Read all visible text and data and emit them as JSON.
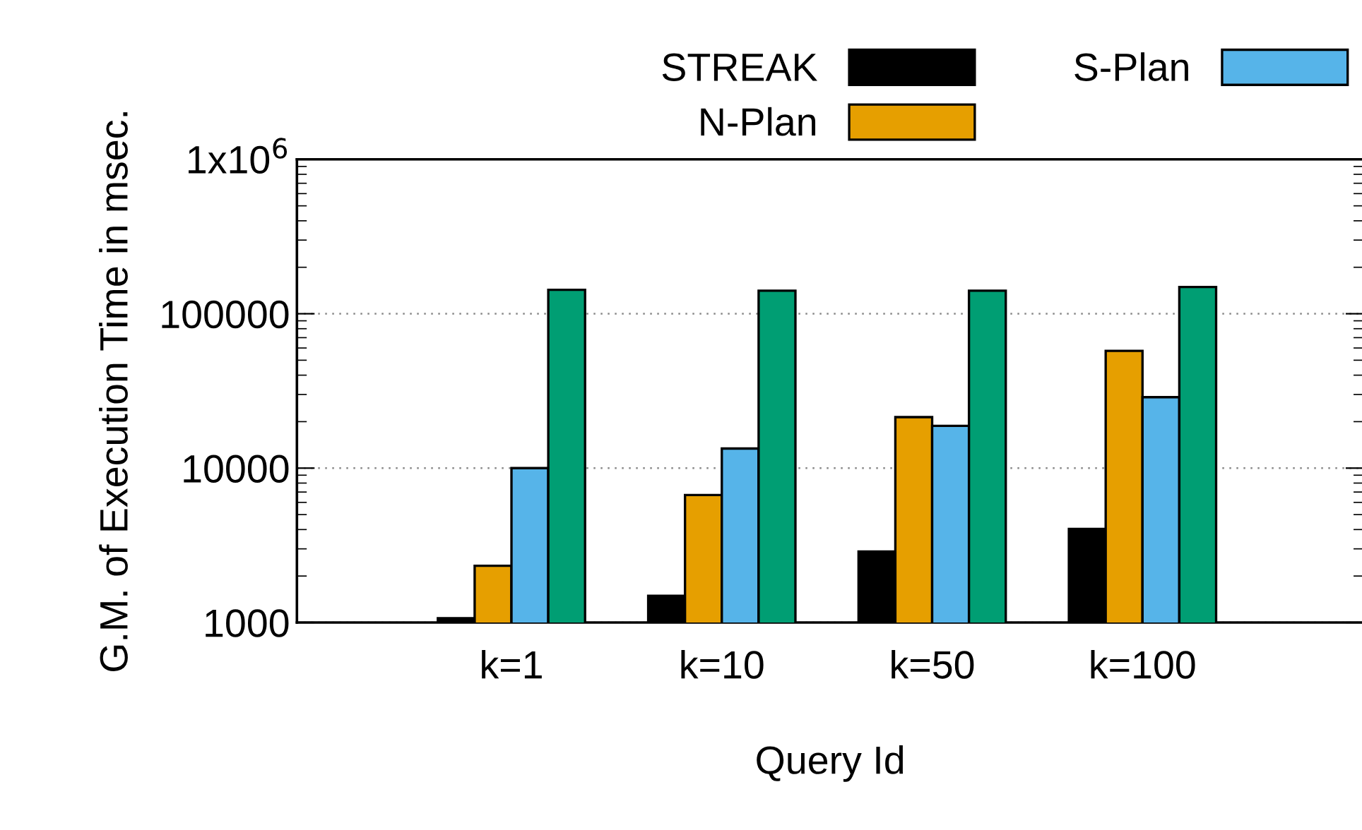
{
  "chart_data": {
    "type": "bar",
    "xlabel": "Query Id",
    "ylabel": "G.M. of Execution Time in msec.",
    "categories": [
      "k=1",
      "k=10",
      "k=50",
      "k=100"
    ],
    "series": [
      {
        "name": "STREAK",
        "color": "#000000",
        "values": [
          1065,
          1490,
          2880,
          4040
        ]
      },
      {
        "name": "N-Plan",
        "color": "#e69f00",
        "values": [
          2330,
          6700,
          21400,
          57500
        ]
      },
      {
        "name": "S-Plan",
        "color": "#56b4e9",
        "values": [
          10000,
          13400,
          18800,
          28800
        ]
      },
      {
        "color": "#009e73",
        "values": [
          143000,
          141000,
          141000,
          149000
        ]
      }
    ],
    "log": "y",
    "ylim": [
      1000,
      1000000
    ],
    "yticks": [
      1000,
      10000,
      100000,
      {
        "value": 1000000,
        "label": "1x10$^{6}$"
      }
    ],
    "grid": "y",
    "legend": "top right"
  }
}
